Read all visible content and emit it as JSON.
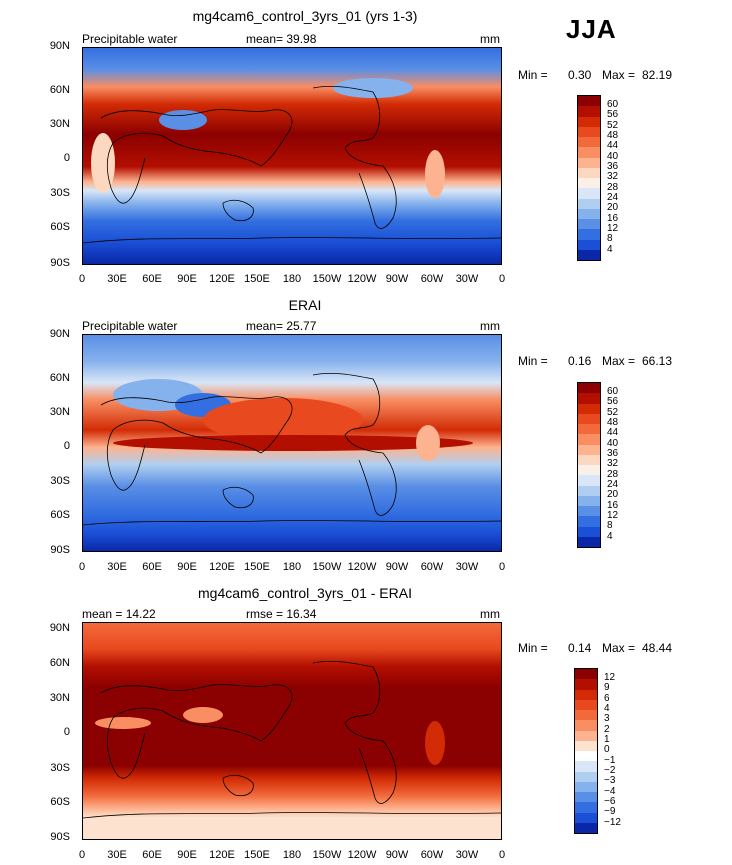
{
  "season": "JJA",
  "panels": [
    {
      "title": "mg4cam6_control_3yrs_01 (yrs 1-3)",
      "left_label": "Precipitable water",
      "center_label": "mean=   39.98",
      "right_label": "mm",
      "min_label": "Min =",
      "min_value": "0.30",
      "max_label": "Max =",
      "max_value": "82.19",
      "colorbar_labels": [
        "60",
        "56",
        "52",
        "48",
        "44",
        "40",
        "36",
        "32",
        "28",
        "24",
        "20",
        "16",
        "12",
        "8",
        "4"
      ],
      "colorbar_colors": [
        "#8b0000",
        "#b30f00",
        "#d22b05",
        "#e8491e",
        "#f26a3c",
        "#f98e62",
        "#fdb38f",
        "#fdd8c0",
        "#fbf0e8",
        "#d8e6f7",
        "#b0cff0",
        "#85b1ec",
        "#5a8fe6",
        "#336fe0",
        "#1a4fd6",
        "#0a27a8"
      ]
    },
    {
      "title": "ERAI",
      "left_label": "Precipitable water",
      "center_label": "mean=   25.77",
      "right_label": "mm",
      "min_label": "Min =",
      "min_value": "0.16",
      "max_label": "Max =",
      "max_value": "66.13",
      "colorbar_labels": [
        "60",
        "56",
        "52",
        "48",
        "44",
        "40",
        "36",
        "32",
        "28",
        "24",
        "20",
        "16",
        "12",
        "8",
        "4"
      ],
      "colorbar_colors": [
        "#8b0000",
        "#b30f00",
        "#d22b05",
        "#e8491e",
        "#f26a3c",
        "#f98e62",
        "#fdb38f",
        "#fdd8c0",
        "#fbf0e8",
        "#d8e6f7",
        "#b0cff0",
        "#85b1ec",
        "#5a8fe6",
        "#336fe0",
        "#1a4fd6",
        "#0a27a8"
      ]
    },
    {
      "title": "mg4cam6_control_3yrs_01 - ERAI",
      "left_label": "mean =   14.22",
      "center_label": "rmse =   16.34",
      "right_label": "mm",
      "min_label": "Min =",
      "min_value": "0.14",
      "max_label": "Max =",
      "max_value": "48.44",
      "colorbar_labels": [
        "12",
        "9",
        "6",
        "4",
        "3",
        "2",
        "1",
        "0",
        "−1",
        "−2",
        "−3",
        "−4",
        "−6",
        "−9",
        "−12"
      ],
      "colorbar_colors": [
        "#8b0000",
        "#b30f00",
        "#d22b05",
        "#e8491e",
        "#f26a3c",
        "#f98e62",
        "#fdb38f",
        "#fde2cf",
        "#ffffff",
        "#d8e6f7",
        "#b0cff0",
        "#85b1ec",
        "#5a8fe6",
        "#336fe0",
        "#1a4fd6",
        "#0a27a8"
      ]
    }
  ],
  "lat_ticks": [
    "90N",
    "60N",
    "30N",
    "0",
    "30S",
    "60S",
    "90S"
  ],
  "lon_ticks": [
    "0",
    "30E",
    "60E",
    "90E",
    "120E",
    "150E",
    "180",
    "150W",
    "120W",
    "90W",
    "60W",
    "30W",
    "0"
  ]
}
